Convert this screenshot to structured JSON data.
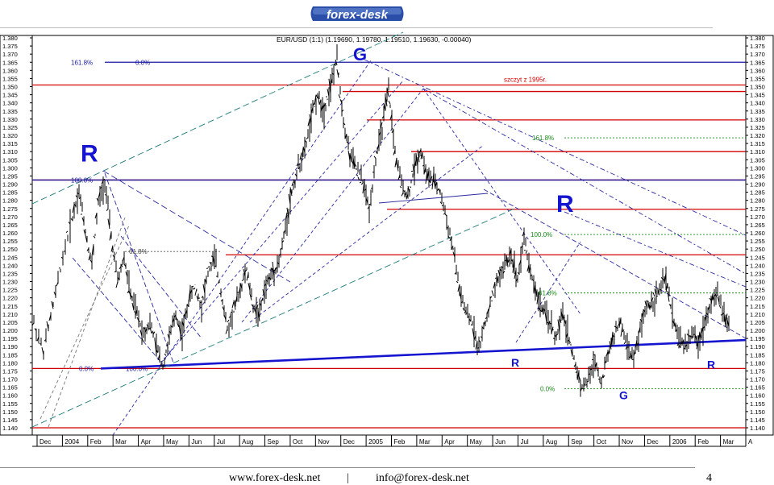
{
  "logo_text": "forex-desk",
  "footer": {
    "website": "www.forex-desk.net",
    "separator": "|",
    "email": "info@forex-desk.net",
    "page_number": "4"
  },
  "chart_data": {
    "type": "bar",
    "title": "EUR/USD (1:1) (1.19690, 1.19780, 1.19510, 1.19630, -0.00040)",
    "y_ticks": [
      1.38,
      1.375,
      1.37,
      1.365,
      1.36,
      1.355,
      1.35,
      1.345,
      1.34,
      1.335,
      1.33,
      1.325,
      1.32,
      1.315,
      1.31,
      1.305,
      1.3,
      1.295,
      1.29,
      1.285,
      1.28,
      1.275,
      1.27,
      1.265,
      1.26,
      1.255,
      1.25,
      1.245,
      1.24,
      1.235,
      1.23,
      1.225,
      1.22,
      1.215,
      1.21,
      1.205,
      1.2,
      1.195,
      1.19,
      1.185,
      1.18,
      1.175,
      1.17,
      1.165,
      1.16,
      1.155,
      1.15,
      1.145,
      1.14
    ],
    "ylim": [
      1.14,
      1.38
    ],
    "x_tick_labels": [
      "Dec",
      "2004",
      "Feb",
      "Mar",
      "Apr",
      "May",
      "Jun",
      "Jul",
      "Aug",
      "Sep",
      "Oct",
      "Nov",
      "Dec",
      "2005",
      "Feb",
      "Mar",
      "Apr",
      "May",
      "Jun",
      "Jul",
      "Aug",
      "Sep",
      "Oct",
      "Nov",
      "Dec",
      "2006",
      "Feb",
      "Mar",
      "A"
    ],
    "price_path": [
      [
        0,
        1.205
      ],
      [
        3,
        1.187
      ],
      [
        6,
        1.215
      ],
      [
        9,
        1.245
      ],
      [
        12,
        1.27
      ],
      [
        14,
        1.286
      ],
      [
        16,
        1.262
      ],
      [
        18,
        1.24
      ],
      [
        20,
        1.278
      ],
      [
        22,
        1.292
      ],
      [
        24,
        1.258
      ],
      [
        26,
        1.23
      ],
      [
        28,
        1.245
      ],
      [
        30,
        1.222
      ],
      [
        32,
        1.21
      ],
      [
        34,
        1.198
      ],
      [
        36,
        1.205
      ],
      [
        38,
        1.19
      ],
      [
        40,
        1.178
      ],
      [
        42,
        1.195
      ],
      [
        44,
        1.21
      ],
      [
        46,
        1.198
      ],
      [
        48,
        1.218
      ],
      [
        50,
        1.228
      ],
      [
        52,
        1.215
      ],
      [
        54,
        1.235
      ],
      [
        56,
        1.245
      ],
      [
        58,
        1.225
      ],
      [
        60,
        1.2
      ],
      [
        62,
        1.212
      ],
      [
        64,
        1.225
      ],
      [
        66,
        1.238
      ],
      [
        68,
        1.215
      ],
      [
        70,
        1.21
      ],
      [
        72,
        1.228
      ],
      [
        74,
        1.235
      ],
      [
        76,
        1.242
      ],
      [
        78,
        1.262
      ],
      [
        80,
        1.285
      ],
      [
        82,
        1.3
      ],
      [
        84,
        1.31
      ],
      [
        86,
        1.33
      ],
      [
        88,
        1.345
      ],
      [
        90,
        1.335
      ],
      [
        92,
        1.35
      ],
      [
        94,
        1.367
      ],
      [
        96,
        1.33
      ],
      [
        98,
        1.308
      ],
      [
        100,
        1.3
      ],
      [
        102,
        1.292
      ],
      [
        104,
        1.274
      ],
      [
        106,
        1.305
      ],
      [
        108,
        1.325
      ],
      [
        110,
        1.348
      ],
      [
        112,
        1.31
      ],
      [
        114,
        1.29
      ],
      [
        116,
        1.282
      ],
      [
        118,
        1.3
      ],
      [
        120,
        1.311
      ],
      [
        122,
        1.295
      ],
      [
        124,
        1.292
      ],
      [
        126,
        1.285
      ],
      [
        128,
        1.268
      ],
      [
        130,
        1.25
      ],
      [
        132,
        1.225
      ],
      [
        134,
        1.21
      ],
      [
        136,
        1.205
      ],
      [
        138,
        1.188
      ],
      [
        140,
        1.205
      ],
      [
        142,
        1.218
      ],
      [
        144,
        1.232
      ],
      [
        146,
        1.24
      ],
      [
        148,
        1.247
      ],
      [
        150,
        1.232
      ],
      [
        152,
        1.258
      ],
      [
        154,
        1.236
      ],
      [
        156,
        1.222
      ],
      [
        158,
        1.212
      ],
      [
        160,
        1.205
      ],
      [
        162,
        1.195
      ],
      [
        164,
        1.21
      ],
      [
        166,
        1.195
      ],
      [
        168,
        1.178
      ],
      [
        170,
        1.165
      ],
      [
        172,
        1.17
      ],
      [
        174,
        1.182
      ],
      [
        176,
        1.168
      ],
      [
        178,
        1.185
      ],
      [
        180,
        1.198
      ],
      [
        182,
        1.205
      ],
      [
        184,
        1.19
      ],
      [
        186,
        1.182
      ],
      [
        188,
        1.2
      ],
      [
        190,
        1.215
      ],
      [
        192,
        1.218
      ],
      [
        194,
        1.225
      ],
      [
        196,
        1.232
      ],
      [
        198,
        1.21
      ],
      [
        200,
        1.195
      ],
      [
        202,
        1.19
      ],
      [
        204,
        1.198
      ],
      [
        206,
        1.192
      ],
      [
        208,
        1.205
      ],
      [
        210,
        1.218
      ],
      [
        212,
        1.222
      ],
      [
        214,
        1.21
      ],
      [
        216,
        1.2
      ]
    ],
    "horizontal_levels": [
      {
        "y": 1.365,
        "color": "#1a1aa0",
        "label": "0.0%"
      },
      {
        "y": 1.351,
        "color": "#d40000",
        "label": "szczyt z 1995r."
      },
      {
        "y": 1.347,
        "color": "#d40000",
        "label": ""
      },
      {
        "y": 1.3295,
        "color": "#d40000",
        "label": ""
      },
      {
        "y": 1.31,
        "color": "#d40000",
        "label": ""
      },
      {
        "y": 1.2925,
        "color": "#d40000",
        "label": ""
      },
      {
        "y": 1.2925,
        "color": "#1a1aa0",
        "label": "100.0%"
      },
      {
        "y": 1.2745,
        "color": "#d40000",
        "label": ""
      },
      {
        "y": 1.2465,
        "color": "#d40000",
        "label": ""
      },
      {
        "y": 1.1765,
        "color": "#d40000",
        "label": ""
      },
      {
        "y": 1.14,
        "color": "#d40000",
        "label": ""
      }
    ],
    "fib_labels": [
      {
        "text": "161.8%",
        "y": 1.365,
        "color": "#1a1aa0"
      },
      {
        "text": "0.0%",
        "y": 1.365,
        "color": "#1a1aa0"
      },
      {
        "text": "100.0%",
        "y": 1.2925,
        "color": "#1a1aa0"
      },
      {
        "text": "61.8%",
        "y": 1.2485,
        "color": "#444"
      },
      {
        "text": "0.0%",
        "y": 1.1765,
        "color": "#1a1aa0"
      },
      {
        "text": "100.0%",
        "y": 1.1765,
        "color": "#1a1aa0"
      },
      {
        "text": "161.8%",
        "y": 1.3185,
        "color": "#1a8a1a"
      },
      {
        "text": "100.0%",
        "y": 1.259,
        "color": "#1a8a1a"
      },
      {
        "text": "61.8%",
        "y": 1.223,
        "color": "#1a8a1a"
      },
      {
        "text": "0.0%",
        "y": 1.164,
        "color": "#1a8a1a"
      }
    ],
    "annotations": [
      {
        "text": "G",
        "y": 1.37
      },
      {
        "text": "R",
        "y": 1.309
      },
      {
        "text": "R",
        "y": 1.278
      },
      {
        "text": "R",
        "y": 1.18
      },
      {
        "text": "G",
        "y": 1.16
      },
      {
        "text": "R",
        "y": 1.179
      }
    ],
    "trendline": {
      "y_start": 1.1765,
      "y_end": 1.194,
      "color": "#1515d0"
    },
    "grid": false
  }
}
